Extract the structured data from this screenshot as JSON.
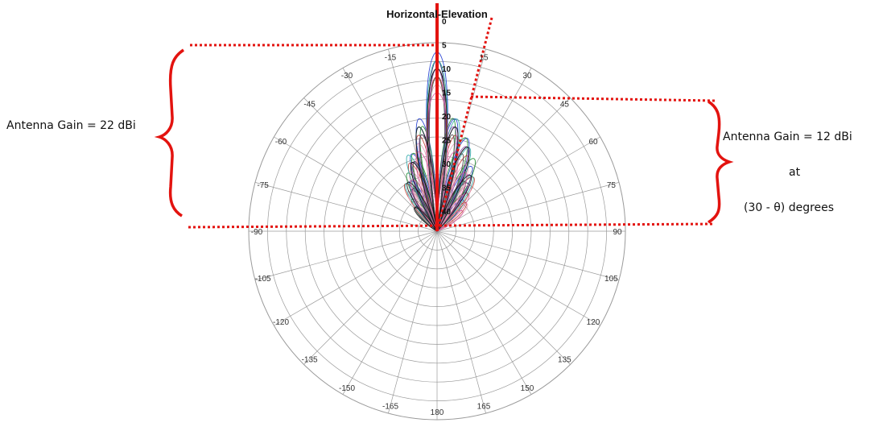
{
  "chart_data": {
    "type": "polar",
    "title": "Horizontal-Elevation",
    "angular_ticks": [
      "0",
      "15",
      "30",
      "45",
      "60",
      "75",
      "90",
      "105",
      "120",
      "135",
      "150",
      "165",
      "180",
      "-165",
      "-150",
      "-135",
      "-120",
      "-105",
      "-90",
      "-75",
      "-60",
      "-45",
      "-30",
      "-15"
    ],
    "radial_ticks": [
      "0",
      "5",
      "10",
      "15",
      "20",
      "25",
      "30",
      "35",
      "40"
    ],
    "radial_range": [
      0,
      40
    ],
    "grid": true,
    "series": [
      {
        "color": "#1f3bd1",
        "lobes": [
          {
            "angle": 0,
            "width": 6,
            "gain": 22
          },
          {
            "angle": -9,
            "width": 6,
            "gain": 14
          },
          {
            "angle": 9,
            "width": 6,
            "gain": 14
          },
          {
            "angle": -18,
            "width": 7,
            "gain": 10
          },
          {
            "angle": 18,
            "width": 7,
            "gain": 12
          },
          {
            "angle": -28,
            "width": 8,
            "gain": 7
          },
          {
            "angle": 28,
            "width": 8,
            "gain": 9
          },
          {
            "angle": -40,
            "width": 9,
            "gain": 4
          },
          {
            "angle": 40,
            "width": 9,
            "gain": 5
          }
        ]
      },
      {
        "color": "#222266",
        "lobes": [
          {
            "angle": 0,
            "width": 5,
            "gain": 21
          },
          {
            "angle": -10,
            "width": 6,
            "gain": 13
          },
          {
            "angle": 10,
            "width": 6,
            "gain": 13
          },
          {
            "angle": -20,
            "width": 7,
            "gain": 9
          },
          {
            "angle": 20,
            "width": 7,
            "gain": 11
          },
          {
            "angle": -32,
            "width": 8,
            "gain": 6
          },
          {
            "angle": 32,
            "width": 8,
            "gain": 7
          }
        ]
      },
      {
        "color": "#1a8a2a",
        "lobes": [
          {
            "angle": 0,
            "width": 6,
            "gain": 20
          },
          {
            "angle": -8,
            "width": 5,
            "gain": 13
          },
          {
            "angle": 8,
            "width": 5,
            "gain": 14
          },
          {
            "angle": -17,
            "width": 7,
            "gain": 10
          },
          {
            "angle": 17,
            "width": 7,
            "gain": 12
          },
          {
            "angle": -27,
            "width": 8,
            "gain": 8
          },
          {
            "angle": 27,
            "width": 8,
            "gain": 10
          },
          {
            "angle": -38,
            "width": 9,
            "gain": 5
          },
          {
            "angle": 38,
            "width": 9,
            "gain": 6
          }
        ]
      },
      {
        "color": "#c0392b",
        "lobes": [
          {
            "angle": 0,
            "width": 6,
            "gain": 19
          },
          {
            "angle": -11,
            "width": 6,
            "gain": 12
          },
          {
            "angle": 11,
            "width": 6,
            "gain": 12
          },
          {
            "angle": -22,
            "width": 7,
            "gain": 9
          },
          {
            "angle": 22,
            "width": 7,
            "gain": 10
          },
          {
            "angle": -34,
            "width": 9,
            "gain": 7
          },
          {
            "angle": 34,
            "width": 9,
            "gain": 8
          },
          {
            "angle": 46,
            "width": 9,
            "gain": 5
          }
        ]
      },
      {
        "color": "#e39bb6",
        "lobes": [
          {
            "angle": 0,
            "width": 7,
            "gain": 18
          },
          {
            "angle": -12,
            "width": 7,
            "gain": 11
          },
          {
            "angle": 12,
            "width": 7,
            "gain": 11
          },
          {
            "angle": -24,
            "width": 8,
            "gain": 8
          },
          {
            "angle": 24,
            "width": 8,
            "gain": 9
          },
          {
            "angle": -36,
            "width": 9,
            "gain": 6
          },
          {
            "angle": 36,
            "width": 9,
            "gain": 7
          },
          {
            "angle": 48,
            "width": 10,
            "gain": 5
          }
        ]
      },
      {
        "color": "#8e44ad",
        "lobes": [
          {
            "angle": 0,
            "width": 5,
            "gain": 20
          },
          {
            "angle": -9,
            "width": 6,
            "gain": 12
          },
          {
            "angle": 9,
            "width": 6,
            "gain": 13
          },
          {
            "angle": -19,
            "width": 7,
            "gain": 9
          },
          {
            "angle": 19,
            "width": 7,
            "gain": 11
          },
          {
            "angle": -30,
            "width": 8,
            "gain": 6
          },
          {
            "angle": 30,
            "width": 8,
            "gain": 8
          }
        ]
      },
      {
        "color": "#2aa9a9",
        "lobes": [
          {
            "angle": 0,
            "width": 6,
            "gain": 21
          },
          {
            "angle": -10,
            "width": 6,
            "gain": 13
          },
          {
            "angle": 10,
            "width": 6,
            "gain": 14
          },
          {
            "angle": -21,
            "width": 7,
            "gain": 10
          },
          {
            "angle": 21,
            "width": 7,
            "gain": 11
          },
          {
            "angle": -33,
            "width": 8,
            "gain": 7
          },
          {
            "angle": 33,
            "width": 8,
            "gain": 8
          }
        ]
      },
      {
        "color": "#444444",
        "lobes": [
          {
            "angle": 0,
            "width": 5,
            "gain": 19
          },
          {
            "angle": -9,
            "width": 5,
            "gain": 12
          },
          {
            "angle": 9,
            "width": 5,
            "gain": 12
          },
          {
            "angle": -18,
            "width": 6,
            "gain": 9
          },
          {
            "angle": 18,
            "width": 6,
            "gain": 10
          },
          {
            "angle": -29,
            "width": 8,
            "gain": 6
          },
          {
            "angle": 29,
            "width": 8,
            "gain": 7
          },
          {
            "angle": -42,
            "width": 9,
            "gain": 4
          }
        ]
      },
      {
        "color": "#d65d9a",
        "lobes": [
          {
            "angle": 0,
            "width": 8,
            "gain": 17
          },
          {
            "angle": -13,
            "width": 8,
            "gain": 10
          },
          {
            "angle": 13,
            "width": 8,
            "gain": 10
          },
          {
            "angle": -26,
            "width": 9,
            "gain": 7
          },
          {
            "angle": 26,
            "width": 9,
            "gain": 8
          },
          {
            "angle": 40,
            "width": 10,
            "gain": 6
          },
          {
            "angle": 52,
            "width": 10,
            "gain": 4
          }
        ]
      },
      {
        "color": "#111111",
        "lobes": [
          {
            "angle": 0,
            "width": 6,
            "gain": 20
          },
          {
            "angle": -10,
            "width": 6,
            "gain": 13
          },
          {
            "angle": 10,
            "width": 6,
            "gain": 13
          },
          {
            "angle": -20,
            "width": 7,
            "gain": 9
          },
          {
            "angle": 20,
            "width": 7,
            "gain": 11
          },
          {
            "angle": -31,
            "width": 8,
            "gain": 7
          },
          {
            "angle": 31,
            "width": 8,
            "gain": 8
          },
          {
            "angle": -44,
            "width": 9,
            "gain": 4
          }
        ]
      }
    ]
  },
  "annotations": {
    "left_gain": "Antenna Gain = 22 dBi",
    "right_gain": "Antenna Gain = 12 dBi",
    "right_at": "at",
    "right_angle": "(30 -  θ) degrees"
  },
  "colors": {
    "marker_red": "#e3130f",
    "grid": "#9a9a9a",
    "angle_tick": "#333333"
  }
}
